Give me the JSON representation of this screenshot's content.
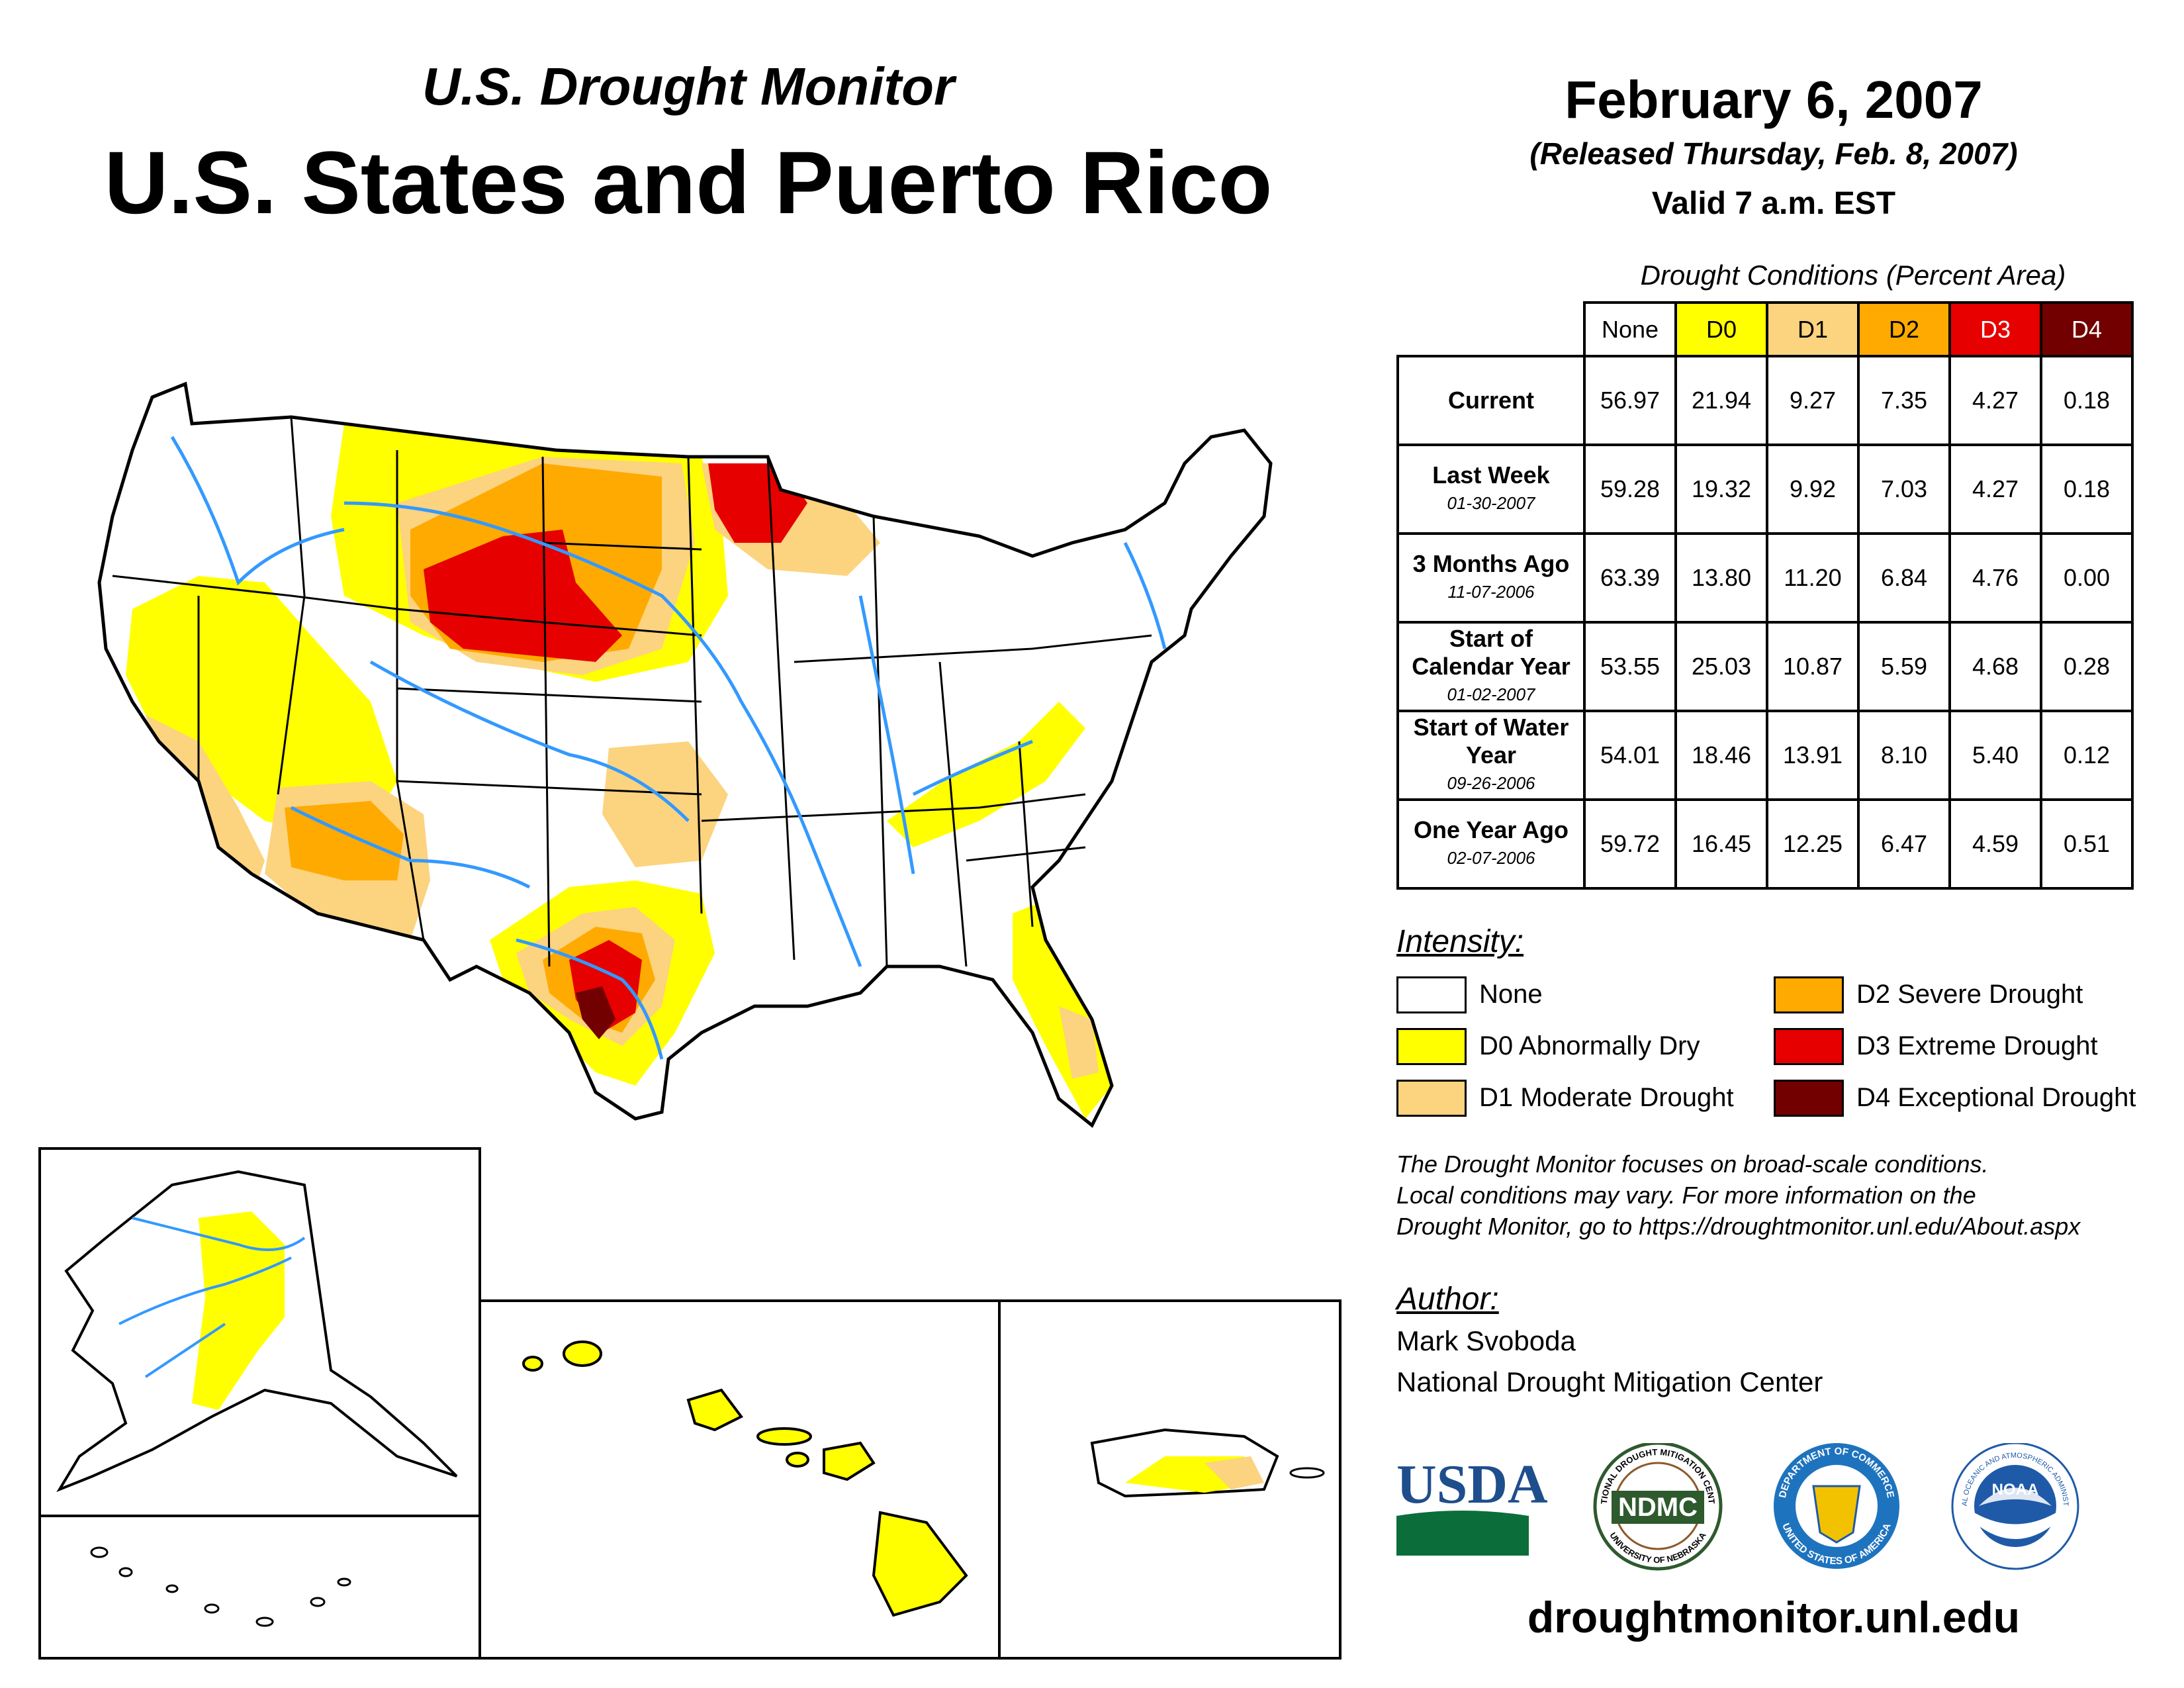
{
  "header": {
    "subtitle": "U.S. Drought Monitor",
    "title": "U.S. States and Puerto Rico",
    "date": "February 6, 2007",
    "released": "(Released Thursday, Feb. 8, 2007)",
    "valid": "Valid 7 a.m. EST"
  },
  "table": {
    "title": "Drought Conditions (Percent Area)",
    "columns": [
      "None",
      "D0",
      "D1",
      "D2",
      "D3",
      "D4"
    ],
    "rows": [
      {
        "label": "Current",
        "date": "",
        "values": [
          "56.97",
          "21.94",
          "9.27",
          "7.35",
          "4.27",
          "0.18"
        ]
      },
      {
        "label": "Last Week",
        "date": "01-30-2007",
        "values": [
          "59.28",
          "19.32",
          "9.92",
          "7.03",
          "4.27",
          "0.18"
        ]
      },
      {
        "label": "3 Months Ago",
        "date": "11-07-2006",
        "values": [
          "63.39",
          "13.80",
          "11.20",
          "6.84",
          "4.76",
          "0.00"
        ]
      },
      {
        "label": "Start of Calendar Year",
        "date": "01-02-2007",
        "values": [
          "53.55",
          "25.03",
          "10.87",
          "5.59",
          "4.68",
          "0.28"
        ]
      },
      {
        "label": "Start of Water Year",
        "date": "09-26-2006",
        "values": [
          "54.01",
          "18.46",
          "13.91",
          "8.10",
          "5.40",
          "0.12"
        ]
      },
      {
        "label": "One Year Ago",
        "date": "02-07-2006",
        "values": [
          "59.72",
          "16.45",
          "12.25",
          "6.47",
          "4.59",
          "0.51"
        ]
      }
    ]
  },
  "legend": {
    "title": "Intensity:",
    "items": [
      {
        "label": "None",
        "color": "#ffffff"
      },
      {
        "label": "D0 Abnormally Dry",
        "color": "#ffff00"
      },
      {
        "label": "D1 Moderate Drought",
        "color": "#fcd37f"
      },
      {
        "label": "D2 Severe Drought",
        "color": "#ffaa00"
      },
      {
        "label": "D3 Extreme Drought",
        "color": "#e60000"
      },
      {
        "label": "D4 Exceptional Drought",
        "color": "#730000"
      }
    ]
  },
  "note": {
    "line1": "The Drought Monitor focuses on broad-scale conditions.",
    "line2": "Local conditions may vary. For more information on the",
    "line3": "Drought Monitor, go to https://droughtmonitor.unl.edu/About.aspx"
  },
  "author": {
    "title": "Author:",
    "name": "Mark Svoboda",
    "org": "National Drought Mitigation Center"
  },
  "logos": {
    "usda": "USDA",
    "ndmc": "NDMC",
    "ndmc_top": "NATIONAL DROUGHT MITIGATION CENTER",
    "ndmc_bottom": "UNIVERSITY OF NEBRASKA",
    "doc_top": "DEPARTMENT OF COMMERCE",
    "doc_bottom": "UNITED STATES OF AMERICA",
    "noaa": "NOAA",
    "noaa_ring": "NATIONAL OCEANIC AND ATMOSPHERIC ADMINISTRATION"
  },
  "footer": {
    "url": "droughtmonitor.unl.edu"
  },
  "colors": {
    "none": "#ffffff",
    "d0": "#ffff00",
    "d1": "#fcd37f",
    "d2": "#ffaa00",
    "d3": "#e60000",
    "d4": "#730000",
    "river": "#3399ff",
    "usda_blue": "#1f4e8c",
    "usda_green": "#0b6e3a",
    "ndmc_green": "#2e5a2e",
    "doc_blue": "#1e73be",
    "noaa_blue": "#1e5aa8"
  }
}
